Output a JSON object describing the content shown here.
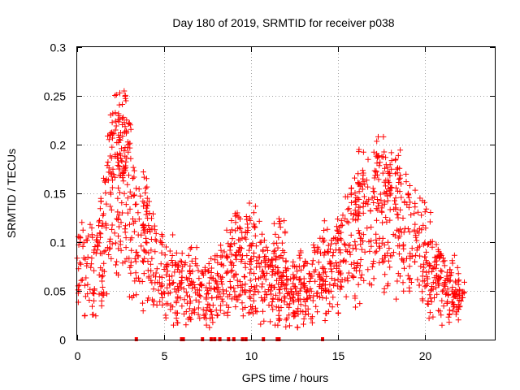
{
  "chart_data": {
    "type": "scatter",
    "title": "Day 180 of 2019, SRMTID for receiver p038",
    "xlabel": "GPS time / hours",
    "ylabel": "SRMTID / TECUs",
    "xlim": [
      0,
      24
    ],
    "ylim": [
      0,
      0.3
    ],
    "x_ticks": [
      0,
      5,
      10,
      15,
      20
    ],
    "x_tick_labels": [
      "0",
      "5",
      "10",
      "15",
      "20"
    ],
    "y_ticks": [
      0,
      0.05,
      0.1,
      0.15,
      0.2,
      0.25,
      0.3
    ],
    "y_tick_labels": [
      "0",
      "0.05",
      "0.1",
      "0.15",
      "0.2",
      "0.25",
      "0.3"
    ],
    "grid": true,
    "marker": "plus",
    "series_color": "#ff0000",
    "grid_color": "#a0a0a0",
    "series": [
      {
        "name": "SRMTID",
        "envelope": [
          {
            "x": 0.0,
            "y": 0.075
          },
          {
            "x": 0.5,
            "y": 0.07
          },
          {
            "x": 1.0,
            "y": 0.07
          },
          {
            "x": 1.5,
            "y": 0.1
          },
          {
            "x": 2.0,
            "y": 0.16
          },
          {
            "x": 2.5,
            "y": 0.16
          },
          {
            "x": 3.0,
            "y": 0.12
          },
          {
            "x": 3.5,
            "y": 0.1
          },
          {
            "x": 4.0,
            "y": 0.09
          },
          {
            "x": 4.5,
            "y": 0.085
          },
          {
            "x": 5.0,
            "y": 0.065
          },
          {
            "x": 6.0,
            "y": 0.055
          },
          {
            "x": 7.0,
            "y": 0.05
          },
          {
            "x": 8.0,
            "y": 0.05
          },
          {
            "x": 9.0,
            "y": 0.07
          },
          {
            "x": 10.0,
            "y": 0.07
          },
          {
            "x": 11.0,
            "y": 0.065
          },
          {
            "x": 12.0,
            "y": 0.05
          },
          {
            "x": 13.0,
            "y": 0.055
          },
          {
            "x": 14.0,
            "y": 0.065
          },
          {
            "x": 15.0,
            "y": 0.08
          },
          {
            "x": 16.0,
            "y": 0.105
          },
          {
            "x": 17.0,
            "y": 0.12
          },
          {
            "x": 18.0,
            "y": 0.125
          },
          {
            "x": 19.0,
            "y": 0.11
          },
          {
            "x": 20.0,
            "y": 0.085
          },
          {
            "x": 21.0,
            "y": 0.055
          },
          {
            "x": 22.0,
            "y": 0.045
          }
        ],
        "peaks": [
          {
            "x": 2.45,
            "y": 0.253
          },
          {
            "x": 2.7,
            "y": 0.255
          },
          {
            "x": 2.8,
            "y": 0.245
          },
          {
            "x": 2.2,
            "y": 0.215
          },
          {
            "x": 17.3,
            "y": 0.208
          },
          {
            "x": 17.6,
            "y": 0.208
          },
          {
            "x": 18.3,
            "y": 0.185
          },
          {
            "x": 16.2,
            "y": 0.195
          },
          {
            "x": 3.8,
            "y": 0.172
          },
          {
            "x": 9.9,
            "y": 0.14
          },
          {
            "x": 11.6,
            "y": 0.124
          },
          {
            "x": 9.2,
            "y": 0.13
          },
          {
            "x": 20.9,
            "y": 0.088
          },
          {
            "x": 21.9,
            "y": 0.06
          }
        ],
        "zeros_x": [
          3.4,
          6.0,
          6.1,
          7.2,
          7.7,
          7.9,
          8.2,
          8.7,
          9.0,
          9.5,
          9.7,
          10.7,
          11.5,
          11.6,
          14.1
        ]
      }
    ]
  }
}
